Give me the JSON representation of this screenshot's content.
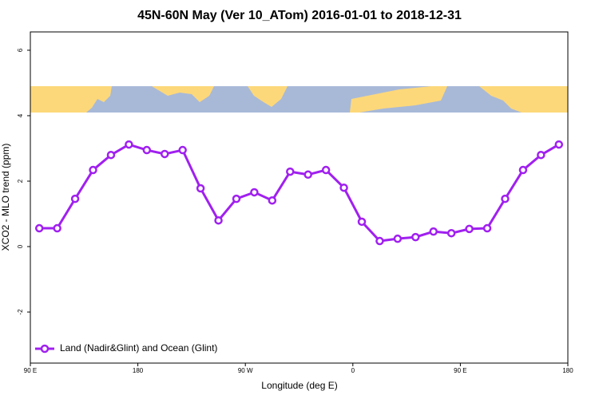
{
  "chart_data": {
    "type": "line",
    "title": "45N-60N May (Ver 10_ATom)   2016-01-01 to 2018-12-31",
    "x_label": "Longitude (deg E)",
    "y_label": "XCO2 - MLO trend (ppm)",
    "x": [
      97.5,
      112.5,
      127.5,
      142.5,
      157.5,
      172.5,
      187.5,
      202.5,
      217.5,
      232.5,
      247.5,
      262.5,
      277.5,
      292.5,
      307.5,
      322.5,
      337.5,
      352.5,
      367.5,
      382.5,
      397.5,
      412.5,
      427.5,
      442.5,
      457.5,
      472.5,
      487.5,
      502.5,
      517.5,
      532.5
    ],
    "series": [
      {
        "name": "Land (Nadir&Glint) and Ocean (Glint)",
        "color": "#a020f0",
        "values": [
          0.56,
          0.56,
          1.46,
          2.34,
          2.8,
          3.12,
          2.95,
          2.83,
          2.95,
          1.78,
          0.8,
          1.46,
          1.66,
          1.41,
          2.29,
          2.2,
          2.34,
          1.8,
          0.76,
          0.17,
          0.24,
          0.29,
          0.46,
          0.41,
          0.54,
          0.56,
          1.46,
          2.34,
          2.8,
          3.12
        ]
      }
    ],
    "xlim": [
      90,
      540
    ],
    "xticks": [
      {
        "value": 90,
        "label": "90 E"
      },
      180,
      {
        "value": 270,
        "label": "90 W"
      },
      {
        "value": 360,
        "label": "0"
      },
      {
        "value": 450,
        "label": "90 E"
      },
      {
        "value": 540,
        "label": "180"
      }
    ],
    "ylim": [
      -3.56,
      6.56
    ],
    "yticks": [
      -2,
      0,
      2,
      4,
      6
    ],
    "legend": "bottomleft"
  }
}
